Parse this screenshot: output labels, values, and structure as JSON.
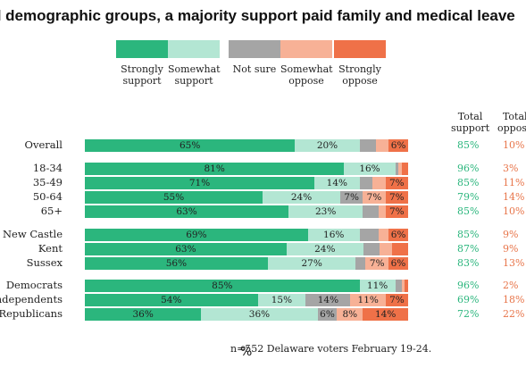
{
  "chart_data": {
    "type": "bar",
    "orientation": "horizontal",
    "stacked": true,
    "title": "ll demographic groups, a majority support paid family and medical leave",
    "xlabel": "%",
    "note": "n=552 Delaware voters February 19-24.",
    "legend": {
      "placement": "top",
      "items": [
        {
          "name": "Strongly\nsupport",
          "color": "#2bb67d"
        },
        {
          "name": "Somewhat\nsupport",
          "color": "#b3e6d3"
        },
        {
          "name": "Not sure",
          "color": "#a5a5a5"
        },
        {
          "name": "Somewhat\noppose",
          "color": "#f7b196"
        },
        {
          "name": "Strongly\noppose",
          "color": "#ef7148"
        }
      ]
    },
    "columns": {
      "support": "Total\nsupport",
      "oppose": "Total\noppose"
    },
    "colors": {
      "support_total": "#2bb67d",
      "oppose_total": "#e8754a"
    },
    "categories": [
      "Overall",
      "18-34",
      "35-49",
      "50-64",
      "65+",
      "New Castle",
      "Kent",
      "Sussex",
      "Democrats",
      "Independents",
      "Republicans"
    ],
    "series": [
      {
        "name": "Strongly support",
        "values": [
          65,
          81,
          71,
          55,
          63,
          69,
          63,
          56,
          85,
          54,
          36
        ],
        "labels": [
          "65%",
          "81%",
          "71%",
          "55%",
          "63%",
          "69%",
          "63%",
          "56%",
          "85%",
          "54%",
          "36%"
        ]
      },
      {
        "name": "Somewhat support",
        "values": [
          20,
          16,
          14,
          24,
          23,
          16,
          24,
          27,
          11,
          15,
          36
        ],
        "labels": [
          "20%",
          "16%",
          "14%",
          "24%",
          "23%",
          "16%",
          "24%",
          "27%",
          "11%",
          "15%",
          "36%"
        ]
      },
      {
        "name": "Not sure",
        "values": [
          5,
          1,
          4,
          7,
          5,
          6,
          5,
          3,
          2,
          14,
          6
        ],
        "labels": [
          "",
          "",
          "",
          "7%",
          "",
          "",
          "",
          "",
          "",
          "14%",
          "6%"
        ]
      },
      {
        "name": "Somewhat oppose",
        "values": [
          4,
          1,
          4,
          7,
          2,
          3,
          4,
          7,
          1,
          11,
          8
        ],
        "labels": [
          "",
          "",
          "",
          "7%",
          "",
          "",
          "",
          "7%",
          "",
          "11%",
          "8%"
        ]
      },
      {
        "name": "Strongly oppose",
        "values": [
          6,
          2,
          7,
          7,
          7,
          6,
          5,
          6,
          1,
          7,
          14
        ],
        "labels": [
          "6%",
          "",
          "7%",
          "7%",
          "7%",
          "6%",
          "",
          "6%",
          "",
          "7%",
          "14%"
        ]
      }
    ],
    "total_support": [
      "85%",
      "96%",
      "85%",
      "79%",
      "85%",
      "85%",
      "87%",
      "83%",
      "96%",
      "69%",
      "72%"
    ],
    "total_oppose": [
      "10%",
      "3%",
      "11%",
      "14%",
      "10%",
      "9%",
      "9%",
      "13%",
      "2%",
      "18%",
      "22%"
    ],
    "xlim": [
      0,
      100
    ]
  }
}
